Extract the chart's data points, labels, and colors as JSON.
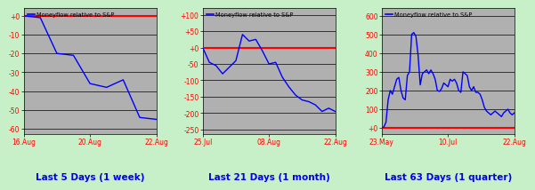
{
  "title": "Moneyflow relative to S&P",
  "bg_outer": "#c8f0c8",
  "bg_plot": "#b0b0b0",
  "line_color": "#0000ff",
  "zero_line_color": "#ff0000",
  "label_color": "#ff0000",
  "title_color": "#0000ee",
  "panel1": {
    "yticks": [
      0,
      -10,
      -20,
      -30,
      -40,
      -50,
      -60
    ],
    "ytick_labels": [
      "+0",
      "-10",
      "-20",
      "-30",
      "-40",
      "-50",
      "-60"
    ],
    "ylim": [
      -63,
      4
    ],
    "xtick_labels": [
      "16.Aug",
      "20.Aug",
      "22.Aug"
    ],
    "xtick_pos": [
      0.0,
      0.5,
      1.0
    ],
    "caption": "Last 5 Days (1 week)",
    "zero_line_y": 0,
    "y": [
      0,
      -1,
      -20,
      -21,
      -36,
      -38,
      -34,
      -54,
      -55
    ]
  },
  "panel2": {
    "yticks": [
      100,
      50,
      0,
      -50,
      -100,
      -150,
      -200,
      -250
    ],
    "ytick_labels": [
      "+100",
      "+50",
      "+0",
      "-50",
      "-100",
      "-150",
      "-200",
      "-250"
    ],
    "ylim": [
      -265,
      120
    ],
    "xtick_labels": [
      "25.Jul",
      "08.Aug",
      "22.Aug"
    ],
    "xtick_pos": [
      0.0,
      0.5,
      1.0
    ],
    "caption": "Last 21 Days (1 month)",
    "zero_line_y": 0,
    "y": [
      0,
      -45,
      -55,
      -80,
      -60,
      -40,
      40,
      20,
      25,
      -10,
      -50,
      -45,
      -90,
      -120,
      -145,
      -160,
      -165,
      -175,
      -195,
      -185,
      -195
    ]
  },
  "panel3": {
    "yticks": [
      600,
      500,
      400,
      300,
      200,
      100,
      0
    ],
    "ytick_labels": [
      "600",
      "500",
      "400",
      "300",
      "200",
      "100",
      "+0"
    ],
    "ylim": [
      -35,
      640
    ],
    "xtick_labels": [
      "23.May",
      "10.Jul",
      "22.Aug"
    ],
    "xtick_pos": [
      0.0,
      0.5,
      1.0
    ],
    "caption": "Last 63 Days (1 quarter)",
    "zero_line_y": 0,
    "y": [
      0,
      5,
      30,
      150,
      200,
      180,
      220,
      260,
      270,
      200,
      160,
      150,
      280,
      300,
      500,
      510,
      490,
      390,
      230,
      290,
      300,
      310,
      290,
      310,
      290,
      260,
      200,
      195,
      210,
      240,
      230,
      220,
      260,
      250,
      260,
      240,
      200,
      190,
      300,
      290,
      280,
      220,
      200,
      220,
      190,
      190,
      180,
      150,
      110,
      90,
      80,
      70,
      80,
      90,
      80,
      70,
      60,
      80,
      90,
      100,
      80,
      70,
      80
    ]
  }
}
